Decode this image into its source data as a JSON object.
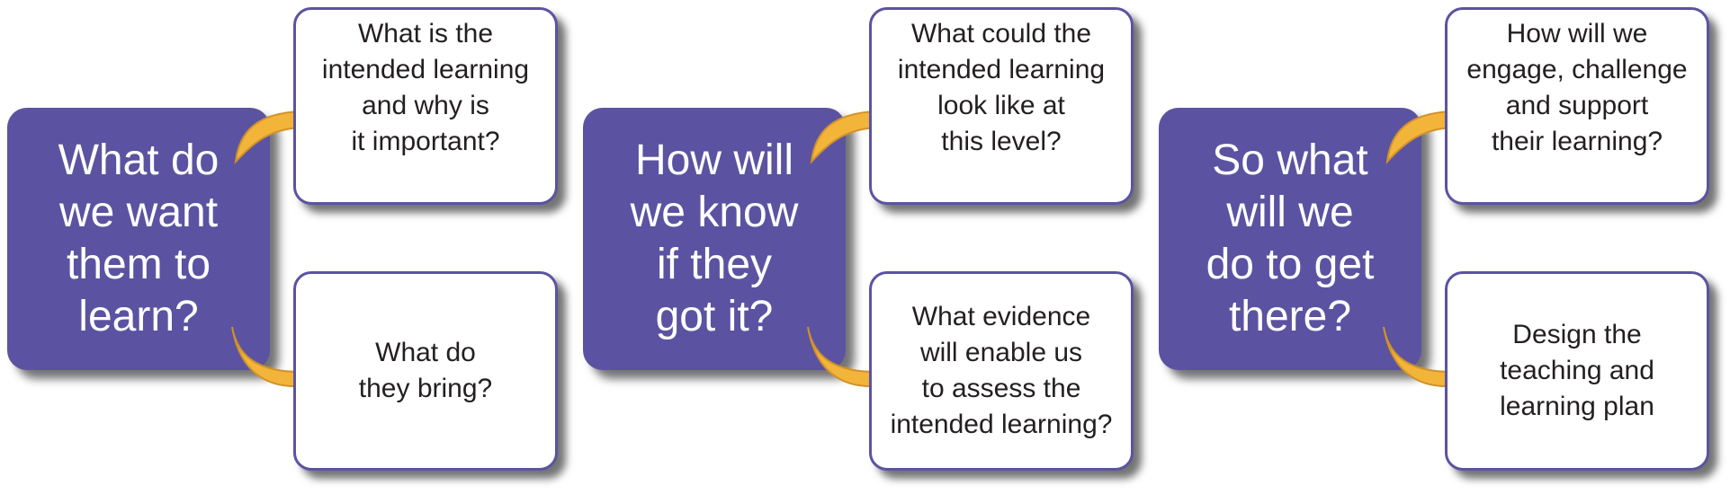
{
  "colors": {
    "primary_box": "#5b53a1",
    "box_border": "#5b53a1",
    "arrow": "#f3b43a",
    "arrow_edge": "#d1922a",
    "text_dark": "#231f20",
    "text_light": "#ffffff"
  },
  "groups": [
    {
      "question": "What do\nwe want\nthem to\nlearn?",
      "top_box": "What is the\nintended learning\nand why is\nit important?",
      "bottom_box": "What do\nthey bring?"
    },
    {
      "question": "How will\nwe know\nif they\ngot it?",
      "top_box": "What could the\nintended learning\nlook like at\nthis level?",
      "bottom_box": "What evidence\nwill enable us\nto assess the\nintended learning?"
    },
    {
      "question": "So what\nwill we\ndo to get\nthere?",
      "top_box": "How will we\nengage, challenge\nand support\ntheir learning?",
      "bottom_box": "Design the\nteaching and\nlearning plan"
    }
  ]
}
